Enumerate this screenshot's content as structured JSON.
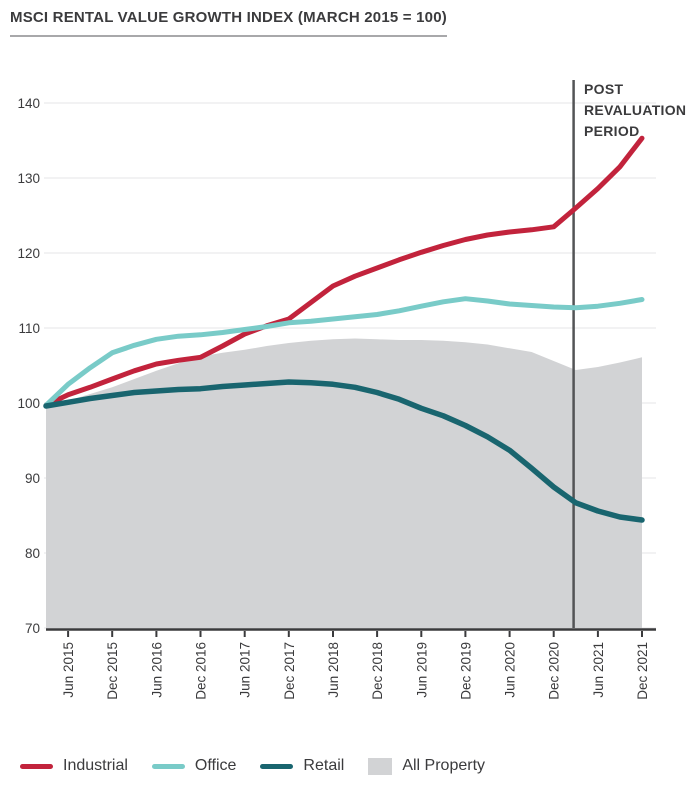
{
  "header": {
    "title": "MSCI RENTAL VALUE GROWTH INDEX (MARCH 2015 = 100)"
  },
  "annotation": {
    "label": "POST REVALUATION PERIOD",
    "lines": [
      "POST",
      "REVALUATION",
      "PERIOD"
    ]
  },
  "chart_data": {
    "type": "line",
    "title": "MSCI RENTAL VALUE GROWTH INDEX (MARCH 2015 = 100)",
    "x_frequency": "quarterly",
    "x": [
      "Mar 2015",
      "Jun 2015",
      "Sep 2015",
      "Dec 2015",
      "Mar 2016",
      "Jun 2016",
      "Sep 2016",
      "Dec 2016",
      "Mar 2017",
      "Jun 2017",
      "Sep 2017",
      "Dec 2017",
      "Mar 2018",
      "Jun 2018",
      "Sep 2018",
      "Dec 2018",
      "Mar 2019",
      "Jun 2019",
      "Sep 2019",
      "Dec 2019",
      "Mar 2020",
      "Jun 2020",
      "Sep 2020",
      "Dec 2020",
      "Mar 2021",
      "Jun 2021",
      "Sep 2021",
      "Dec 2021"
    ],
    "categories": [
      "Jun 2015",
      "Dec 2015",
      "Jun 2016",
      "Dec 2016",
      "Jun 2017",
      "Dec 2017",
      "Jun 2018",
      "Dec 2018",
      "Jun 2019",
      "Dec 2019",
      "Jun 2020",
      "Dec 2020",
      "Jun 2021",
      "Dec 2021"
    ],
    "yticks": [
      70,
      80,
      90,
      100,
      110,
      120,
      130,
      140
    ],
    "ylim": [
      70,
      140
    ],
    "grid": "horizontal",
    "legend_position": "bottom",
    "annotation": {
      "label": "POST REVALUATION PERIOD",
      "x_index": 23.9
    },
    "area": {
      "name": "All Property",
      "color": "#d2d3d5",
      "values": [
        99.5,
        100.3,
        101.2,
        102.1,
        103.2,
        104.3,
        105.3,
        106.2,
        106.7,
        107.1,
        107.6,
        108.0,
        108.3,
        108.5,
        108.6,
        108.5,
        108.4,
        108.4,
        108.3,
        108.1,
        107.8,
        107.3,
        106.8,
        105.6,
        104.4,
        104.8,
        105.4,
        106.1
      ]
    },
    "series": [
      {
        "name": "Industrial",
        "color": "#c2233c",
        "values": [
          99.7,
          101.1,
          102.1,
          103.2,
          104.3,
          105.2,
          105.7,
          106.1,
          107.6,
          109.2,
          110.3,
          111.2,
          113.4,
          115.6,
          116.9,
          118.0,
          119.1,
          120.1,
          121.0,
          121.8,
          122.4,
          122.8,
          123.1,
          123.5,
          126.0,
          128.6,
          131.5,
          135.3
        ]
      },
      {
        "name": "Office",
        "color": "#79cbc8",
        "values": [
          99.7,
          102.5,
          104.7,
          106.7,
          107.7,
          108.5,
          108.9,
          109.1,
          109.4,
          109.8,
          110.2,
          110.7,
          110.9,
          111.2,
          111.5,
          111.8,
          112.3,
          112.9,
          113.5,
          113.9,
          113.6,
          113.2,
          113.0,
          112.8,
          112.7,
          112.9,
          113.3,
          113.8
        ]
      },
      {
        "name": "Retail",
        "color": "#19656f",
        "values": [
          99.6,
          100.1,
          100.6,
          101.0,
          101.4,
          101.6,
          101.8,
          101.9,
          102.2,
          102.4,
          102.6,
          102.8,
          102.7,
          102.5,
          102.1,
          101.4,
          100.5,
          99.3,
          98.3,
          97.0,
          95.5,
          93.7,
          91.3,
          88.8,
          86.7,
          85.6,
          84.8,
          84.4
        ]
      }
    ],
    "colors": {
      "grid": "#eaeaec",
      "axis": "#3a3a3c",
      "annotation_line": "#535456",
      "text": "#3b3b3d"
    }
  },
  "legend": {
    "items": [
      {
        "label": "Industrial",
        "color": "#c2233c",
        "swatch": "line"
      },
      {
        "label": "Office",
        "color": "#79cbc8",
        "swatch": "line"
      },
      {
        "label": "Retail",
        "color": "#19656f",
        "swatch": "line"
      },
      {
        "label": "All Property",
        "color": "#d2d3d5",
        "swatch": "box"
      }
    ]
  }
}
